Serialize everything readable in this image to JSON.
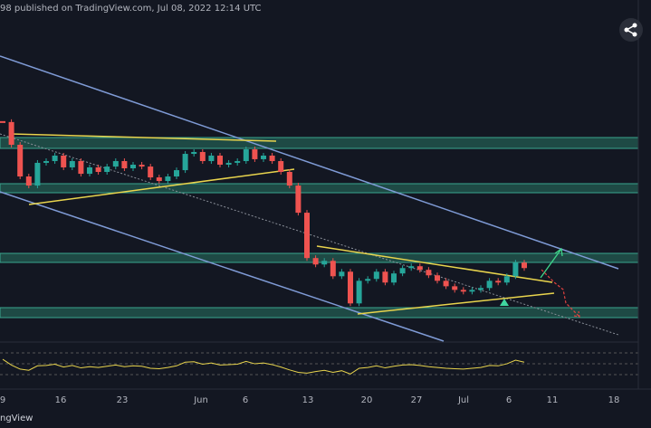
{
  "header": {
    "published": "98 published on TradingView.com, Jul 08, 2022 12:14 UTC"
  },
  "logo": "ngView",
  "chart_data": {
    "type": "candlestick",
    "ylim": [
      630,
      3580
    ],
    "up_color": "#26a69a",
    "down_color": "#ef5350",
    "closes": [
      2533,
      2338,
      2066,
      1988,
      2183,
      2198,
      2245,
      2144,
      2198,
      2089,
      2144,
      2105,
      2151,
      2198,
      2136,
      2167,
      2151,
      2058,
      2027,
      2066,
      2120,
      2260,
      2276,
      2198,
      2245,
      2167,
      2183,
      2198,
      2299,
      2214,
      2245,
      2198,
      2105,
      1988,
      1755,
      1366,
      1311,
      1342,
      1210,
      1249,
      977,
      1171,
      1187,
      1249,
      1156,
      1234,
      1280,
      1296,
      1265,
      1218,
      1171,
      1124,
      1093,
      1078,
      1093,
      1109,
      1171,
      1156,
      1210,
      1327,
      1280
    ],
    "oscillator": [
      62,
      48,
      38,
      35,
      46,
      47,
      50,
      43,
      47,
      41,
      44,
      42,
      45,
      48,
      44,
      46,
      45,
      40,
      39,
      42,
      46,
      55,
      56,
      50,
      53,
      48,
      49,
      50,
      57,
      51,
      53,
      49,
      43,
      36,
      30,
      28,
      32,
      35,
      30,
      34,
      26,
      40,
      42,
      46,
      41,
      45,
      48,
      49,
      47,
      44,
      42,
      40,
      39,
      38,
      40,
      42,
      47,
      46,
      51,
      60,
      55
    ],
    "x_labels": [
      "9",
      "16",
      "23",
      "Jun",
      "6",
      "13",
      "20",
      "27",
      "Jul",
      "6",
      "11",
      "18"
    ]
  }
}
